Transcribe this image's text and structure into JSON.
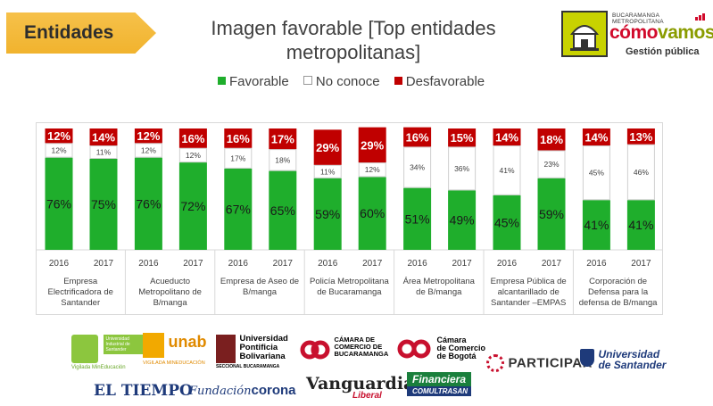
{
  "header": {
    "tag_label": "Entidades",
    "title_line1": "Imagen favorable [Top entidades",
    "title_line2": "metropolitanas]"
  },
  "brand": {
    "top": "BUCARAMANGA METROPOLITANA",
    "name_part1": "cómo",
    "name_part2": "vamos",
    "sub": "Gestión pública"
  },
  "legend": [
    {
      "label": "Favorable",
      "color": "#1fae2c"
    },
    {
      "label": "No conoce",
      "color": "#ffffff"
    },
    {
      "label": "Desfavorable",
      "color": "#c00000"
    }
  ],
  "chart_data": {
    "type": "bar",
    "stacked": true,
    "ylim": [
      0,
      100
    ],
    "categories": [
      "Empresa Electrificadora de Santander",
      "Acueducto Metropolitano de B/manga",
      "Empresa de Aseo de B/manga",
      "Policía Metropolitana de Bucaramanga",
      "Área Metropolitana de B/manga",
      "Empresa Pública de alcantarillado de Santander –EMPAS",
      "Corporación de Defensa para la defensa de B/manga"
    ],
    "category_label_lines": [
      [
        "Empresa",
        "Electrificadora de",
        "Santander"
      ],
      [
        "Acueducto",
        "Metropolitano de",
        "B/manga"
      ],
      [
        "Empresa de Aseo de",
        "B/manga"
      ],
      [
        "Policía Metropolitana",
        "de Bucaramanga"
      ],
      [
        "Área Metropolitana",
        "de B/manga"
      ],
      [
        "Empresa Pública de",
        "alcantarillado de",
        "Santander –EMPAS"
      ],
      [
        "Corporación de",
        "Defensa para la",
        "defensa de B/manga"
      ]
    ],
    "years": [
      "2016",
      "2017"
    ],
    "series": [
      {
        "name": "Favorable",
        "color": "#1fae2c",
        "values": [
          [
            76,
            75
          ],
          [
            76,
            72
          ],
          [
            67,
            65
          ],
          [
            59,
            60
          ],
          [
            51,
            49
          ],
          [
            45,
            59
          ],
          [
            41,
            41
          ]
        ]
      },
      {
        "name": "No conoce",
        "color": "#ffffff",
        "values": [
          [
            12,
            11
          ],
          [
            12,
            12
          ],
          [
            17,
            18
          ],
          [
            11,
            12
          ],
          [
            34,
            36
          ],
          [
            41,
            23
          ],
          [
            45,
            46
          ]
        ]
      },
      {
        "name": "Desfavorable",
        "color": "#c00000",
        "values": [
          [
            12,
            14
          ],
          [
            12,
            16
          ],
          [
            16,
            17
          ],
          [
            29,
            29
          ],
          [
            16,
            15
          ],
          [
            14,
            18
          ],
          [
            14,
            13
          ]
        ]
      }
    ]
  },
  "sponsors": {
    "uis": "Universidad Industrial de Santander",
    "uis_sub": "Vigilada MinEducación",
    "unab": "unab",
    "unab_sub": "VIGILADA MINEDUCACIÓN",
    "upb": "Universidad Pontificia Bolivariana",
    "upb_sub": "SECCIONAL BUCARAMANGA",
    "ccb_line1": "CÁMARA DE",
    "ccb_line2": "COMERCIO DE",
    "ccb_line3": "BUCARAMANGA",
    "ccbog_line1": "Cámara",
    "ccbog_line2": "de Comercio",
    "ccbog_line3": "de Bogotá",
    "participar": "PARTICIPAR",
    "udes_line1": "Universidad",
    "udes_line2": "de Santander",
    "eltiempo": "EL TIEMPO",
    "fundacion_part1": "Fundación",
    "fundacion_part2": "corona",
    "vanguardia": "Vanguardia",
    "vanguardia_sub": "Liberal",
    "financiera_line1": "Financiera",
    "financiera_line2": "COMULTRASAN"
  }
}
